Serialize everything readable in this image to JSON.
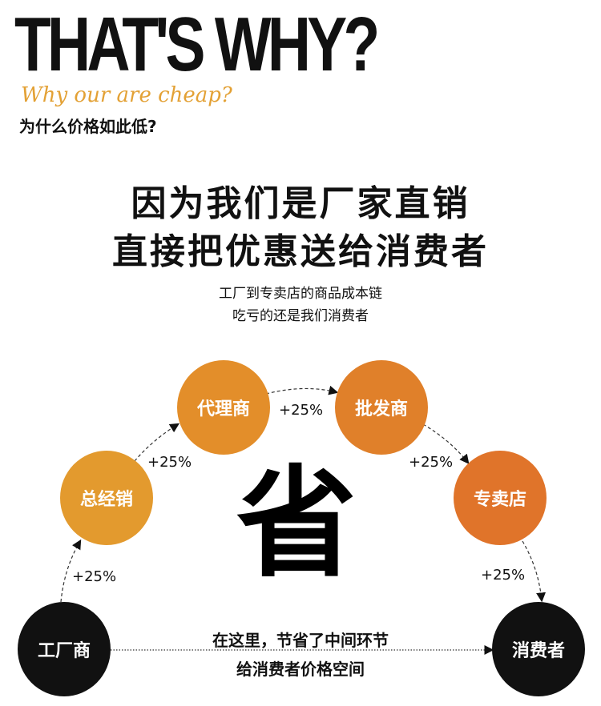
{
  "header": {
    "headline": "THAT'S WHY?",
    "subtitle_en": "Why our are cheap?",
    "subtitle_cn": "为什么价格如此低?"
  },
  "main": {
    "line1": "因为我们是厂家直销",
    "line2": "直接把优惠送给消费者",
    "note1": "工厂到专卖店的商品成本链",
    "note2": "吃亏的还是我们消费者"
  },
  "diagram": {
    "nodes": [
      {
        "label": "工厂商",
        "color": "#111111"
      },
      {
        "label": "总经销",
        "color": "#e39a2e"
      },
      {
        "label": "代理商",
        "color": "#e38e2a"
      },
      {
        "label": "批发商",
        "color": "#e0802a"
      },
      {
        "label": "专卖店",
        "color": "#e0742a"
      },
      {
        "label": "消费者",
        "color": "#111111"
      }
    ],
    "markups": [
      "+25%",
      "+25%",
      "+25%",
      "+25%",
      "+25%"
    ],
    "center_char": "省",
    "bottom_line1": "在这里，节省了中间环节",
    "bottom_line2": "给消费者价格空间"
  }
}
